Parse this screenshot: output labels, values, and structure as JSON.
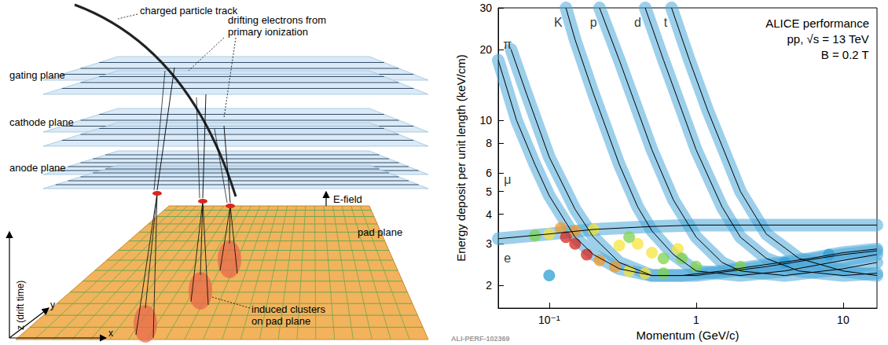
{
  "diagram": {
    "track_label": "charged particle track",
    "drift_label": [
      "drifting electrons from",
      "primary ionization"
    ],
    "planes": [
      "gating plane",
      "cathode plane",
      "anode plane"
    ],
    "efield_label": "E-field",
    "pad_plane_label": "pad plane",
    "clusters_label": [
      "induced clusters",
      "on pad plane"
    ],
    "axes": {
      "z": "z (drift time)",
      "y": "y",
      "x": "x"
    }
  },
  "chart_data": {
    "type": "line",
    "xlabel": "Momentum (GeV/c)",
    "ylabel": "Energy deposit per unit length (keV/cm)",
    "log": true,
    "grid": false,
    "xlim": [
      0.045,
      17
    ],
    "ylim": [
      1.6,
      30
    ],
    "xticks": [
      {
        "value": 0.1,
        "label": "10⁻¹"
      },
      1,
      10
    ],
    "yticks": [
      2,
      3,
      4,
      5,
      6,
      8,
      10,
      20,
      30
    ],
    "band_color": "#4aa8d8",
    "series": [
      {
        "name": "e",
        "color": "#000000",
        "values": [
          [
            0.045,
            3.15
          ],
          [
            0.1,
            3.3
          ],
          [
            0.2,
            3.45
          ],
          [
            0.5,
            3.55
          ],
          [
            1,
            3.6
          ],
          [
            3,
            3.6
          ],
          [
            10,
            3.6
          ],
          [
            17,
            3.6
          ]
        ]
      },
      {
        "name": "μ",
        "color": "#000000",
        "values": [
          [
            0.045,
            18
          ],
          [
            0.06,
            10
          ],
          [
            0.08,
            6.5
          ],
          [
            0.1,
            4.8
          ],
          [
            0.15,
            3.2
          ],
          [
            0.2,
            2.7
          ],
          [
            0.3,
            2.35
          ],
          [
            0.5,
            2.2
          ],
          [
            1,
            2.2
          ],
          [
            3,
            2.4
          ],
          [
            10,
            2.7
          ],
          [
            17,
            2.8
          ]
        ]
      },
      {
        "name": "π",
        "color": "#000000",
        "values": [
          [
            0.055,
            20
          ],
          [
            0.07,
            13
          ],
          [
            0.1,
            7
          ],
          [
            0.15,
            4.2
          ],
          [
            0.2,
            3.2
          ],
          [
            0.3,
            2.5
          ],
          [
            0.5,
            2.2
          ],
          [
            0.8,
            2.2
          ],
          [
            1.5,
            2.3
          ],
          [
            3,
            2.45
          ],
          [
            6,
            2.6
          ],
          [
            10,
            2.75
          ],
          [
            17,
            2.85
          ]
        ]
      },
      {
        "name": "K",
        "color": "#000000",
        "values": [
          [
            0.13,
            30
          ],
          [
            0.15,
            22
          ],
          [
            0.2,
            13
          ],
          [
            0.3,
            6.5
          ],
          [
            0.4,
            4.3
          ],
          [
            0.5,
            3.4
          ],
          [
            0.7,
            2.7
          ],
          [
            1,
            2.3
          ],
          [
            2,
            2.2
          ],
          [
            4,
            2.3
          ],
          [
            10,
            2.55
          ],
          [
            17,
            2.7
          ]
        ]
      },
      {
        "name": "p",
        "color": "#000000",
        "values": [
          [
            0.22,
            30
          ],
          [
            0.3,
            18
          ],
          [
            0.4,
            11
          ],
          [
            0.5,
            7.5
          ],
          [
            0.7,
            4.6
          ],
          [
            1,
            3.2
          ],
          [
            1.5,
            2.5
          ],
          [
            2,
            2.3
          ],
          [
            4,
            2.2
          ],
          [
            10,
            2.35
          ],
          [
            17,
            2.5
          ]
        ]
      },
      {
        "name": "d",
        "color": "#000000",
        "values": [
          [
            0.45,
            30
          ],
          [
            0.6,
            18
          ],
          [
            0.8,
            11
          ],
          [
            1,
            7.5
          ],
          [
            1.5,
            4.3
          ],
          [
            2,
            3.2
          ],
          [
            3,
            2.6
          ],
          [
            5,
            2.3
          ],
          [
            10,
            2.2
          ],
          [
            17,
            2.25
          ]
        ]
      },
      {
        "name": "t",
        "color": "#000000",
        "values": [
          [
            0.68,
            30
          ],
          [
            0.9,
            18
          ],
          [
            1.2,
            11
          ],
          [
            1.5,
            7.8
          ],
          [
            2,
            5
          ],
          [
            3,
            3.3
          ],
          [
            5,
            2.6
          ],
          [
            10,
            2.3
          ],
          [
            17,
            2.2
          ]
        ]
      }
    ],
    "density_colors": [
      "#2e9fd6",
      "#7fd34e",
      "#f7e43a",
      "#f39a2b",
      "#d7261e"
    ],
    "density": [
      [
        0.12,
        3.5,
        4
      ],
      [
        0.13,
        3.2,
        5
      ],
      [
        0.15,
        3.0,
        5
      ],
      [
        0.18,
        2.7,
        5
      ],
      [
        0.22,
        2.55,
        4
      ],
      [
        0.28,
        2.4,
        4
      ],
      [
        0.35,
        2.3,
        3
      ],
      [
        0.45,
        2.25,
        3
      ],
      [
        0.6,
        2.25,
        2
      ],
      [
        0.08,
        3.25,
        2
      ],
      [
        0.1,
        3.3,
        3
      ],
      [
        0.15,
        3.4,
        4
      ],
      [
        0.2,
        3.45,
        3
      ],
      [
        0.3,
        2.95,
        3
      ],
      [
        0.4,
        3.0,
        3
      ],
      [
        0.35,
        3.2,
        2
      ],
      [
        0.5,
        2.75,
        3
      ],
      [
        0.6,
        2.6,
        2
      ],
      [
        0.75,
        2.85,
        3
      ],
      [
        0.8,
        2.6,
        2
      ],
      [
        1,
        2.4,
        2
      ],
      [
        2,
        2.4,
        2
      ],
      [
        4,
        2.5,
        1
      ],
      [
        8,
        2.7,
        1
      ],
      [
        0.1,
        2.2,
        1
      ]
    ],
    "annotations": [
      {
        "text": "π",
        "x": 0.052,
        "y": 21
      },
      {
        "text": "K",
        "x": 0.115,
        "y": 26
      },
      {
        "text": "p",
        "x": 0.2,
        "y": 26
      },
      {
        "text": "d",
        "x": 0.4,
        "y": 26
      },
      {
        "text": "t",
        "x": 0.62,
        "y": 26
      },
      {
        "text": "μ",
        "x": 0.052,
        "y": 5.6
      },
      {
        "text": "e",
        "x": 0.052,
        "y": 2.6
      }
    ],
    "info": [
      "ALICE performance",
      "pp, √s = 13 TeV",
      "B = 0.2 T"
    ],
    "figure_id": "ALI-PERF-102369"
  }
}
